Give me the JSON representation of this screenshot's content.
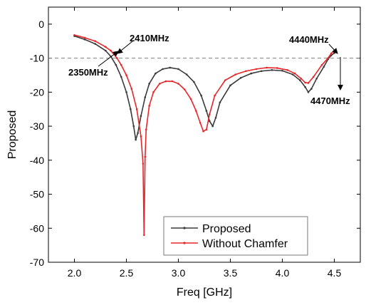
{
  "chart_data": {
    "type": "line",
    "title": "",
    "xlabel": "Freq [GHz]",
    "ylabel": "Proposed",
    "xlim": [
      1.75,
      4.75
    ],
    "ylim": [
      -70,
      5
    ],
    "x_ticks": [
      2.0,
      2.5,
      3.0,
      3.5,
      4.0,
      4.5
    ],
    "x_tick_labels": [
      "2.0",
      "2.5",
      "3.0",
      "3.5",
      "4.0",
      "4.5"
    ],
    "y_ticks": [
      0,
      -10,
      -20,
      -30,
      -40,
      -50,
      -60,
      -70
    ],
    "y_tick_labels": [
      "0",
      "-10",
      "-20",
      "-30",
      "-40",
      "-50",
      "-60",
      "-70"
    ],
    "grid": false,
    "reference_line": {
      "y": -10,
      "style": "dashed",
      "color": "#808080"
    },
    "legend": {
      "placement": "bottom-center"
    },
    "series": [
      {
        "name": "Proposed",
        "color": "#3a3a3a",
        "x": [
          2.0,
          2.1,
          2.2,
          2.3,
          2.35,
          2.4,
          2.45,
          2.5,
          2.54,
          2.57,
          2.59,
          2.61,
          2.64,
          2.68,
          2.72,
          2.78,
          2.85,
          2.92,
          3.0,
          3.08,
          3.15,
          3.22,
          3.27,
          3.3,
          3.33,
          3.36,
          3.4,
          3.5,
          3.6,
          3.7,
          3.8,
          3.9,
          4.0,
          4.1,
          4.17,
          4.22,
          4.25,
          4.28,
          4.33,
          4.4,
          4.44,
          4.47,
          4.5
        ],
        "y": [
          -3.5,
          -4.5,
          -5.8,
          -7.8,
          -9.5,
          -12,
          -15.5,
          -20,
          -25,
          -30,
          -34,
          -32,
          -27,
          -21.5,
          -17.5,
          -14.5,
          -13.2,
          -12.8,
          -13.2,
          -14.8,
          -17,
          -21,
          -25.5,
          -28.5,
          -30,
          -27.5,
          -23,
          -18,
          -15.8,
          -14.5,
          -13.8,
          -13.5,
          -13.7,
          -14.8,
          -16.5,
          -18.5,
          -20,
          -19,
          -16,
          -12.5,
          -10.3,
          -9.2,
          -8.5
        ]
      },
      {
        "name": "Without Chamfer",
        "color": "#e8262a",
        "x": [
          2.0,
          2.1,
          2.2,
          2.3,
          2.35,
          2.41,
          2.45,
          2.5,
          2.55,
          2.6,
          2.64,
          2.66,
          2.67,
          2.68,
          2.69,
          2.72,
          2.76,
          2.82,
          2.88,
          2.94,
          3.0,
          3.06,
          3.12,
          3.17,
          3.21,
          3.24,
          3.27,
          3.3,
          3.35,
          3.45,
          3.55,
          3.65,
          3.75,
          3.85,
          3.95,
          4.05,
          4.12,
          4.18,
          4.22,
          4.25,
          4.3,
          4.38,
          4.44,
          4.47,
          4.5
        ],
        "y": [
          -3.2,
          -4,
          -5,
          -6.7,
          -7.8,
          -10,
          -12,
          -15,
          -19,
          -25,
          -33,
          -41,
          -62,
          -39,
          -31,
          -24,
          -20,
          -17.5,
          -16.8,
          -16.8,
          -17.5,
          -19.2,
          -22,
          -25.5,
          -29,
          -31.5,
          -31,
          -26.5,
          -21,
          -16.5,
          -14.8,
          -13.8,
          -13.2,
          -12.8,
          -12.9,
          -13.5,
          -14.5,
          -16,
          -17.2,
          -17.3,
          -15.5,
          -12,
          -10,
          -8.6,
          -7.8
        ]
      }
    ],
    "annotations": [
      {
        "text": "2350MHz",
        "x": 2.35,
        "y": -10
      },
      {
        "text": "2410MHz",
        "x": 2.41,
        "y": -10
      },
      {
        "text": "4440MHz",
        "x": 4.44,
        "y": -10
      },
      {
        "text": "4470MHz",
        "x": 4.47,
        "y": -10
      }
    ]
  }
}
